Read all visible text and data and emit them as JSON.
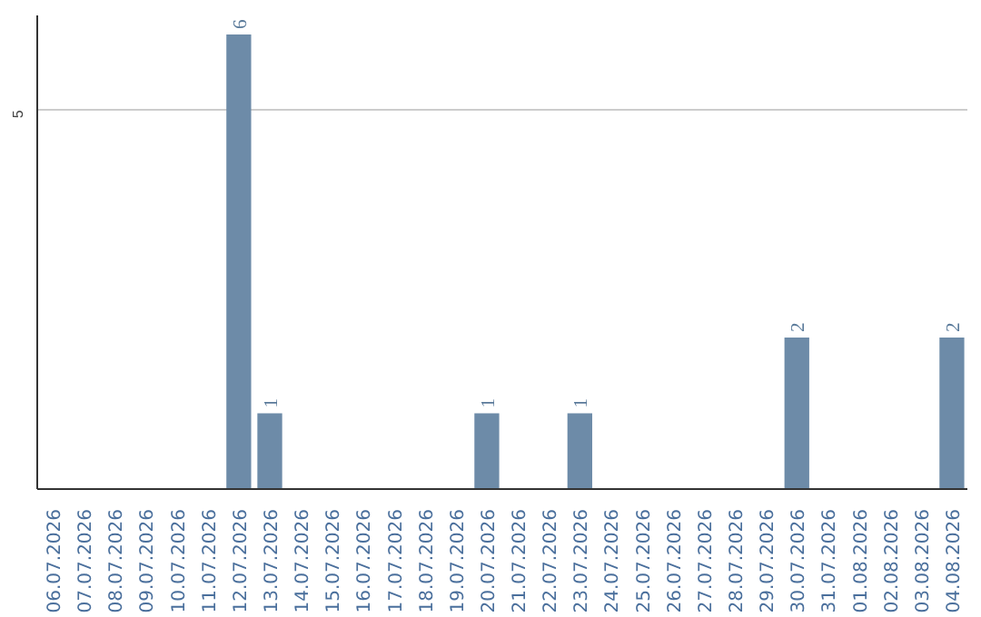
{
  "chart_data": {
    "type": "bar",
    "categories": [
      "06.07.2026",
      "07.07.2026",
      "08.07.2026",
      "09.07.2026",
      "10.07.2026",
      "11.07.2026",
      "12.07.2026",
      "13.07.2026",
      "14.07.2026",
      "15.07.2026",
      "16.07.2026",
      "17.07.2026",
      "18.07.2026",
      "19.07.2026",
      "20.07.2026",
      "21.07.2026",
      "22.07.2026",
      "23.07.2026",
      "24.07.2026",
      "25.07.2026",
      "26.07.2026",
      "27.07.2026",
      "28.07.2026",
      "29.07.2026",
      "30.07.2026",
      "31.07.2026",
      "01.08.2026",
      "02.08.2026",
      "03.08.2026",
      "04.08.2026"
    ],
    "values": [
      0,
      0,
      0,
      0,
      0,
      0,
      6,
      1,
      0,
      0,
      0,
      0,
      0,
      0,
      1,
      0,
      0,
      1,
      0,
      0,
      0,
      0,
      0,
      0,
      2,
      0,
      0,
      0,
      0,
      2
    ],
    "value_labels": [
      null,
      null,
      null,
      null,
      null,
      null,
      "6",
      "1",
      null,
      null,
      null,
      null,
      null,
      null,
      "1",
      null,
      null,
      "1",
      null,
      null,
      null,
      null,
      null,
      null,
      "2",
      null,
      null,
      null,
      null,
      "2"
    ],
    "color": "#6d8ba8",
    "ylim": [
      0,
      6.25
    ],
    "yticks": [
      5
    ],
    "grid": "y"
  }
}
